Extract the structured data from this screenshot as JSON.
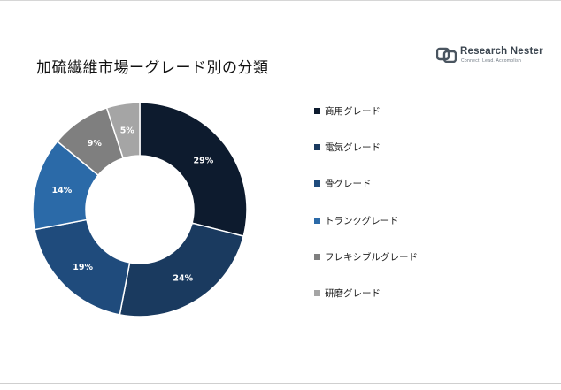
{
  "title": "加硫繊維市場ーグレード別の分類",
  "logo": {
    "name": "Research Nester",
    "tagline": "Connect. Lead. Accomplish",
    "icon": "rn-logo-icon"
  },
  "chart_data": {
    "type": "pie",
    "donut": true,
    "categories": [
      "商用グレード",
      "電気グレード",
      "骨グレード",
      "トランクグレード",
      "フレキシブルグレード",
      "研磨グレード"
    ],
    "values": [
      29,
      24,
      19,
      14,
      9,
      5
    ],
    "labels": [
      "29%",
      "24%",
      "19%",
      "14%",
      "9%",
      "5%"
    ],
    "colors": [
      "#0d1b2e",
      "#1a3a5f",
      "#1f4b7c",
      "#2b6aa8",
      "#7f7f7f",
      "#a5a5a5"
    ],
    "label_colors": [
      "#ffffff",
      "#ffffff",
      "#ffffff",
      "#ffffff",
      "#ffffff",
      "#ffffff"
    ],
    "legend_position": "right"
  }
}
